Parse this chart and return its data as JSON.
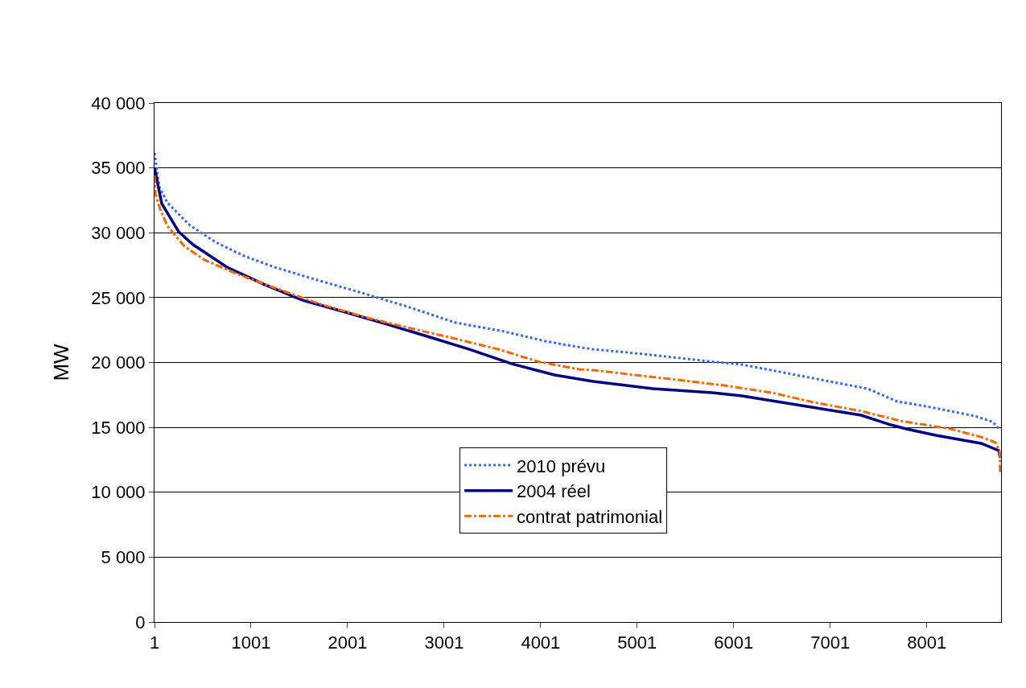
{
  "chart_data": {
    "type": "line",
    "ylabel": "MW",
    "xlim": [
      1,
      8770
    ],
    "xticks": [
      1,
      1001,
      2001,
      3001,
      4001,
      5001,
      6001,
      7001,
      8001
    ],
    "ylim": [
      0,
      40000
    ],
    "yticks": [
      {
        "value": 0,
        "label": "0"
      },
      {
        "value": 5000,
        "label": "5 000"
      },
      {
        "value": 10000,
        "label": "10 000"
      },
      {
        "value": 15000,
        "label": "15 000"
      },
      {
        "value": 20000,
        "label": "20 000"
      },
      {
        "value": 25000,
        "label": "25 000"
      },
      {
        "value": 30000,
        "label": "30 000"
      },
      {
        "value": 35000,
        "label": "35 000"
      },
      {
        "value": 40000,
        "label": "40 000"
      }
    ],
    "grid": "y",
    "legend": "bottom",
    "marker": "none",
    "series": [
      {
        "name": "2010 prévu",
        "color": "#3366ff",
        "line_style": "dotted",
        "x": [
          1,
          50,
          134,
          368,
          635,
          926,
          1243,
          1685,
          2152,
          2619,
          3119,
          3586,
          4053,
          4378,
          4545,
          5070,
          5745,
          6087,
          6737,
          7388,
          7696,
          8038,
          8496,
          8680,
          8760
        ],
        "values": [
          36150,
          33550,
          32310,
          30570,
          29270,
          28220,
          27350,
          26360,
          25360,
          24310,
          23070,
          22450,
          21640,
          21210,
          21020,
          20650,
          20090,
          19840,
          18910,
          17980,
          16990,
          16560,
          15880,
          15440,
          14820
        ]
      },
      {
        "name": "2004 réel",
        "color": "#000080",
        "line_style": "solid",
        "x": [
          1,
          76,
          251,
          400,
          751,
          1126,
          1535,
          1952,
          2385,
          2827,
          3262,
          3703,
          4145,
          4545,
          5162,
          5779,
          6087,
          6704,
          7321,
          7630,
          7788,
          8096,
          8563,
          8747,
          8760
        ],
        "values": [
          35000,
          32250,
          30080,
          29085,
          27350,
          26050,
          24800,
          23940,
          23000,
          22015,
          21020,
          19900,
          19040,
          18540,
          17980,
          17670,
          17430,
          16680,
          15940,
          15190,
          14880,
          14390,
          13770,
          13210,
          12650
        ]
      },
      {
        "name": "contrat patrimonial",
        "color": "#ff6600",
        "line_style": "dashed",
        "x": [
          1,
          10,
          60,
          134,
          310,
          518,
          868,
          1277,
          1719,
          2211,
          2653,
          3086,
          3561,
          3995,
          4403,
          4545,
          5412,
          5904,
          6396,
          6829,
          7321,
          7730,
          8246,
          8563,
          8713,
          8755,
          8760
        ],
        "values": [
          34420,
          33000,
          31810,
          30510,
          28960,
          27910,
          26790,
          25670,
          24500,
          23440,
          22640,
          21890,
          21020,
          20030,
          19470,
          19410,
          18670,
          18230,
          17670,
          16930,
          16250,
          15500,
          14880,
          14260,
          13830,
          13150,
          11530
        ]
      }
    ]
  }
}
